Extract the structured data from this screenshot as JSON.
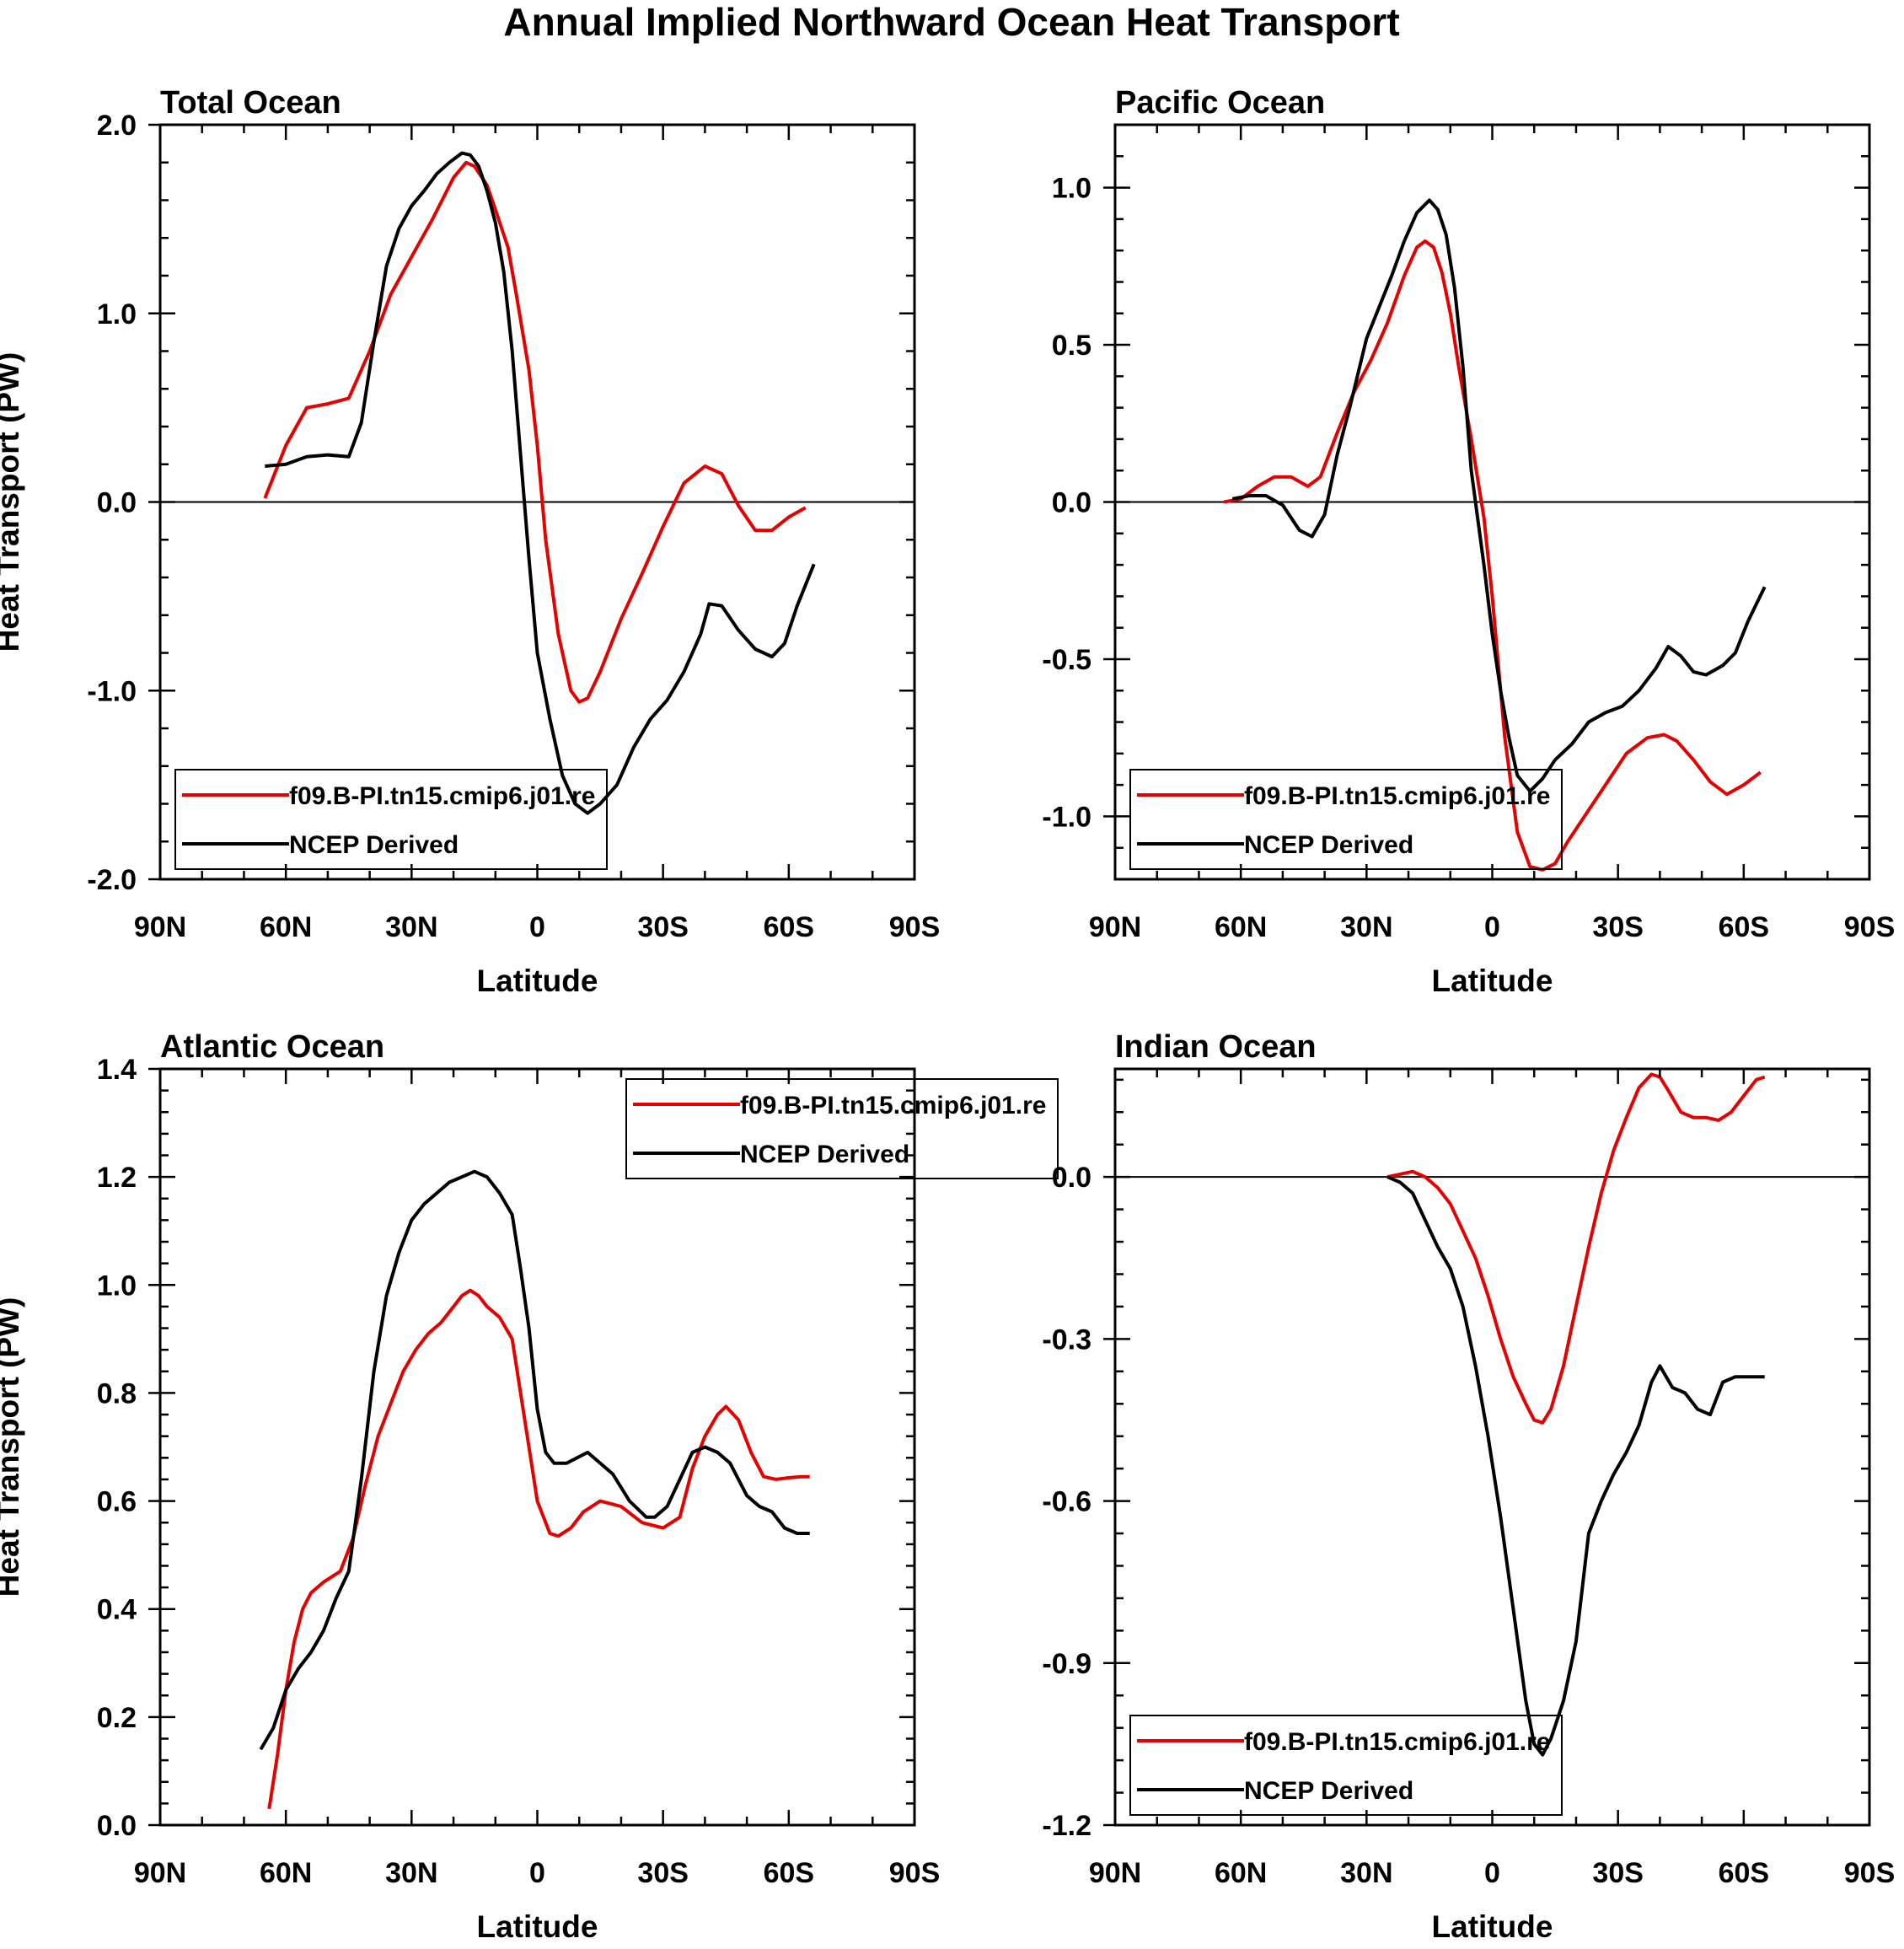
{
  "title": "Annual Implied Northward Ocean Heat Transport",
  "colors": {
    "model": "#e60000",
    "obs": "#000000"
  },
  "chart_data": [
    {
      "type": "line",
      "title": "Total Ocean",
      "xlabel": "Latitude",
      "ylabel": "Heat Transport (PW)",
      "xlim": [
        90,
        -90
      ],
      "ylim": [
        -2.0,
        2.0
      ],
      "xticks": [
        90,
        60,
        30,
        0,
        -30,
        -60,
        -90
      ],
      "xtick_labels": [
        "90N",
        "60N",
        "30N",
        "0",
        "30S",
        "60S",
        "90S"
      ],
      "yticks": [
        -2.0,
        -1.0,
        0.0,
        1.0,
        2.0
      ],
      "ytick_labels": [
        "-2.0",
        "-1.0",
        "0.0",
        "1.0",
        "2.0"
      ],
      "legend_position": "bottom-left",
      "grid": false,
      "series": [
        {
          "name": "f09.B-PI.tn15.cmip6.j01.re",
          "color": "#e60000",
          "x": [
            65,
            60,
            55,
            50,
            45,
            40,
            35,
            30,
            25,
            20,
            17,
            15,
            12,
            10,
            7,
            5,
            2,
            0,
            -2,
            -5,
            -8,
            -10,
            -12,
            -15,
            -20,
            -25,
            -30,
            -35,
            -40,
            -44,
            -48,
            -52,
            -56,
            -60,
            -64
          ],
          "y": [
            0.02,
            0.3,
            0.5,
            0.52,
            0.55,
            0.8,
            1.1,
            1.3,
            1.5,
            1.72,
            1.8,
            1.78,
            1.68,
            1.55,
            1.35,
            1.1,
            0.7,
            0.3,
            -0.2,
            -0.7,
            -1.0,
            -1.06,
            -1.04,
            -0.9,
            -0.62,
            -0.38,
            -0.13,
            0.1,
            0.19,
            0.15,
            -0.02,
            -0.15,
            -0.15,
            -0.08,
            -0.03
          ]
        },
        {
          "name": "NCEP Derived",
          "color": "#000000",
          "x": [
            65,
            60,
            55,
            50,
            45,
            42,
            39,
            36,
            33,
            30,
            27,
            24,
            21,
            18,
            16,
            14,
            12,
            10,
            8,
            6,
            4,
            2,
            0,
            -3,
            -6,
            -9,
            -12,
            -15,
            -19,
            -23,
            -27,
            -31,
            -35,
            -39,
            -41,
            -44,
            -48,
            -52,
            -56,
            -59,
            -62,
            -66
          ],
          "y": [
            0.19,
            0.2,
            0.24,
            0.25,
            0.24,
            0.42,
            0.85,
            1.25,
            1.45,
            1.57,
            1.65,
            1.74,
            1.8,
            1.85,
            1.84,
            1.78,
            1.65,
            1.48,
            1.22,
            0.8,
            0.25,
            -0.3,
            -0.8,
            -1.15,
            -1.45,
            -1.6,
            -1.65,
            -1.6,
            -1.5,
            -1.3,
            -1.15,
            -1.05,
            -0.9,
            -0.7,
            -0.54,
            -0.55,
            -0.68,
            -0.78,
            -0.82,
            -0.75,
            -0.55,
            -0.33
          ]
        }
      ]
    },
    {
      "type": "line",
      "title": "Pacific Ocean",
      "xlabel": "Latitude",
      "ylabel": "",
      "xlim": [
        90,
        -90
      ],
      "ylim": [
        -1.2,
        1.2
      ],
      "xticks": [
        90,
        60,
        30,
        0,
        -30,
        -60,
        -90
      ],
      "xtick_labels": [
        "90N",
        "60N",
        "30N",
        "0",
        "30S",
        "60S",
        "90S"
      ],
      "yticks": [
        -1.0,
        -0.5,
        0.0,
        0.5,
        1.0
      ],
      "ytick_labels": [
        "-1.0",
        "-0.5",
        "0.0",
        "0.5",
        "1.0"
      ],
      "legend_position": "bottom-left",
      "grid": false,
      "series": [
        {
          "name": "f09.B-PI.tn15.cmip6.j01.re",
          "color": "#e60000",
          "x": [
            64,
            60,
            56,
            52,
            48,
            44,
            41,
            37,
            33,
            29,
            25,
            21,
            18,
            16,
            14,
            12,
            10,
            8,
            5,
            2,
            0,
            -3,
            -6,
            -9,
            -12,
            -15,
            -18,
            -22,
            -27,
            -32,
            -37,
            -41,
            -44,
            -48,
            -52,
            -56,
            -60,
            -64
          ],
          "y": [
            0.0,
            0.01,
            0.05,
            0.08,
            0.08,
            0.05,
            0.08,
            0.22,
            0.35,
            0.45,
            0.57,
            0.72,
            0.81,
            0.83,
            0.81,
            0.73,
            0.6,
            0.43,
            0.2,
            -0.05,
            -0.3,
            -0.75,
            -1.05,
            -1.16,
            -1.17,
            -1.15,
            -1.08,
            -1.0,
            -0.9,
            -0.8,
            -0.75,
            -0.74,
            -0.76,
            -0.82,
            -0.89,
            -0.93,
            -0.9,
            -0.86
          ]
        },
        {
          "name": "NCEP Derived",
          "color": "#000000",
          "x": [
            62,
            58,
            54,
            50,
            46,
            43,
            40,
            37,
            34,
            30,
            27,
            24,
            21,
            18,
            15,
            13,
            11,
            9,
            7,
            5,
            2,
            0,
            -2,
            -4,
            -6,
            -9,
            -12,
            -15,
            -19,
            -23,
            -27,
            -31,
            -35,
            -39,
            -42,
            -45,
            -48,
            -51,
            -55,
            -58,
            -61,
            -65
          ],
          "y": [
            0.01,
            0.02,
            0.02,
            -0.01,
            -0.09,
            -0.11,
            -0.04,
            0.15,
            0.3,
            0.52,
            0.62,
            0.72,
            0.83,
            0.92,
            0.96,
            0.93,
            0.85,
            0.68,
            0.43,
            0.1,
            -0.2,
            -0.42,
            -0.6,
            -0.75,
            -0.87,
            -0.92,
            -0.88,
            -0.82,
            -0.77,
            -0.7,
            -0.67,
            -0.65,
            -0.6,
            -0.53,
            -0.46,
            -0.49,
            -0.54,
            -0.55,
            -0.52,
            -0.48,
            -0.38,
            -0.27
          ]
        }
      ]
    },
    {
      "type": "line",
      "title": "Atlantic Ocean",
      "xlabel": "Latitude",
      "ylabel": "Heat Transport (PW)",
      "xlim": [
        90,
        -90
      ],
      "ylim": [
        0.0,
        1.4
      ],
      "xticks": [
        90,
        60,
        30,
        0,
        -30,
        -60,
        -90
      ],
      "xtick_labels": [
        "90N",
        "60N",
        "30N",
        "0",
        "30S",
        "60S",
        "90S"
      ],
      "yticks": [
        0.0,
        0.2,
        0.4,
        0.6,
        0.8,
        1.0,
        1.2,
        1.4
      ],
      "ytick_labels": [
        "0.0",
        "0.2",
        "0.4",
        "0.6",
        "0.8",
        "1.0",
        "1.2",
        "1.4"
      ],
      "legend_position": "top-right",
      "grid": false,
      "series": [
        {
          "name": "f09.B-PI.tn15.cmip6.j01.re",
          "color": "#e60000",
          "x": [
            64,
            62,
            60,
            58,
            56,
            54,
            51,
            47,
            44,
            41,
            38,
            35,
            32,
            29,
            26,
            23,
            20,
            18,
            16,
            14,
            12,
            9,
            6,
            3,
            0,
            -3,
            -5,
            -8,
            -11,
            -15,
            -20,
            -25,
            -30,
            -34,
            -37,
            -40,
            -43,
            -45,
            -48,
            -51,
            -54,
            -57,
            -60,
            -63,
            -65
          ],
          "y": [
            0.03,
            0.13,
            0.25,
            0.34,
            0.4,
            0.43,
            0.45,
            0.47,
            0.53,
            0.63,
            0.72,
            0.78,
            0.84,
            0.88,
            0.91,
            0.93,
            0.96,
            0.98,
            0.99,
            0.98,
            0.96,
            0.94,
            0.9,
            0.75,
            0.6,
            0.54,
            0.535,
            0.55,
            0.58,
            0.6,
            0.59,
            0.56,
            0.55,
            0.57,
            0.66,
            0.72,
            0.76,
            0.775,
            0.75,
            0.69,
            0.645,
            0.64,
            0.643,
            0.645,
            0.645
          ],
          "y_end_note": ""
        },
        {
          "name": "NCEP Derived",
          "color": "#000000",
          "x": [
            66,
            63,
            60,
            57,
            54,
            51,
            48,
            45,
            42,
            39,
            36,
            33,
            30,
            27,
            24,
            21,
            18,
            15,
            12,
            9,
            6,
            4,
            2,
            0,
            -2,
            -4,
            -7,
            -12,
            -18,
            -22,
            -26,
            -28,
            -31,
            -34,
            -37,
            -40,
            -43,
            -46,
            -50,
            -53,
            -56,
            -59,
            -62,
            -65
          ],
          "y": [
            0.14,
            0.18,
            0.25,
            0.29,
            0.32,
            0.36,
            0.42,
            0.47,
            0.64,
            0.84,
            0.98,
            1.06,
            1.12,
            1.15,
            1.17,
            1.19,
            1.2,
            1.21,
            1.2,
            1.17,
            1.13,
            1.03,
            0.92,
            0.77,
            0.69,
            0.67,
            0.67,
            0.69,
            0.65,
            0.6,
            0.57,
            0.57,
            0.59,
            0.64,
            0.69,
            0.7,
            0.69,
            0.67,
            0.61,
            0.59,
            0.58,
            0.55,
            0.54,
            0.54
          ]
        }
      ]
    },
    {
      "type": "line",
      "title": "Indian Ocean",
      "xlabel": "Latitude",
      "ylabel": "",
      "xlim": [
        90,
        -90
      ],
      "ylim": [
        -1.2,
        0.2
      ],
      "xticks": [
        90,
        60,
        30,
        0,
        -30,
        -60,
        -90
      ],
      "xtick_labels": [
        "90N",
        "60N",
        "30N",
        "0",
        "30S",
        "60S",
        "90S"
      ],
      "yticks": [
        -1.2,
        -0.9,
        -0.6,
        -0.3,
        0.0
      ],
      "ytick_labels": [
        "-1.2",
        "-0.9",
        "-0.6",
        "-0.3",
        "0.0"
      ],
      "legend_position": "bottom-left",
      "grid": false,
      "series": [
        {
          "name": "f09.B-PI.tn15.cmip6.j01.re",
          "color": "#e60000",
          "x": [
            25,
            22,
            19,
            16,
            13,
            10,
            7,
            4,
            1,
            -2,
            -5,
            -8,
            -10,
            -12,
            -14,
            -17,
            -20,
            -23,
            -26,
            -29,
            -32,
            -35,
            -38,
            -40,
            -42,
            -45,
            -48,
            -51,
            -54,
            -57,
            -60,
            -63,
            -65
          ],
          "y": [
            0.0,
            0.005,
            0.01,
            0.0,
            -0.02,
            -0.05,
            -0.1,
            -0.15,
            -0.22,
            -0.3,
            -0.37,
            -0.42,
            -0.45,
            -0.455,
            -0.43,
            -0.35,
            -0.24,
            -0.13,
            -0.03,
            0.05,
            0.11,
            0.165,
            0.19,
            0.185,
            0.16,
            0.12,
            0.11,
            0.11,
            0.105,
            0.12,
            0.15,
            0.18,
            0.185
          ]
        },
        {
          "name": "NCEP Derived",
          "color": "#000000",
          "x": [
            25,
            22,
            19,
            16,
            13,
            10,
            7,
            4,
            1,
            -2,
            -5,
            -8,
            -10,
            -12,
            -14,
            -17,
            -20,
            -23,
            -26,
            -29,
            -32,
            -35,
            -38,
            -40,
            -43,
            -46,
            -49,
            -52,
            -55,
            -58,
            -61,
            -65
          ],
          "y": [
            0.0,
            -0.01,
            -0.03,
            -0.08,
            -0.13,
            -0.17,
            -0.24,
            -0.35,
            -0.48,
            -0.63,
            -0.8,
            -0.97,
            -1.05,
            -1.07,
            -1.04,
            -0.97,
            -0.86,
            -0.66,
            -0.6,
            -0.55,
            -0.51,
            -0.46,
            -0.38,
            -0.35,
            -0.39,
            -0.4,
            -0.43,
            -0.44,
            -0.38,
            -0.37,
            -0.37,
            -0.37
          ]
        }
      ]
    }
  ]
}
